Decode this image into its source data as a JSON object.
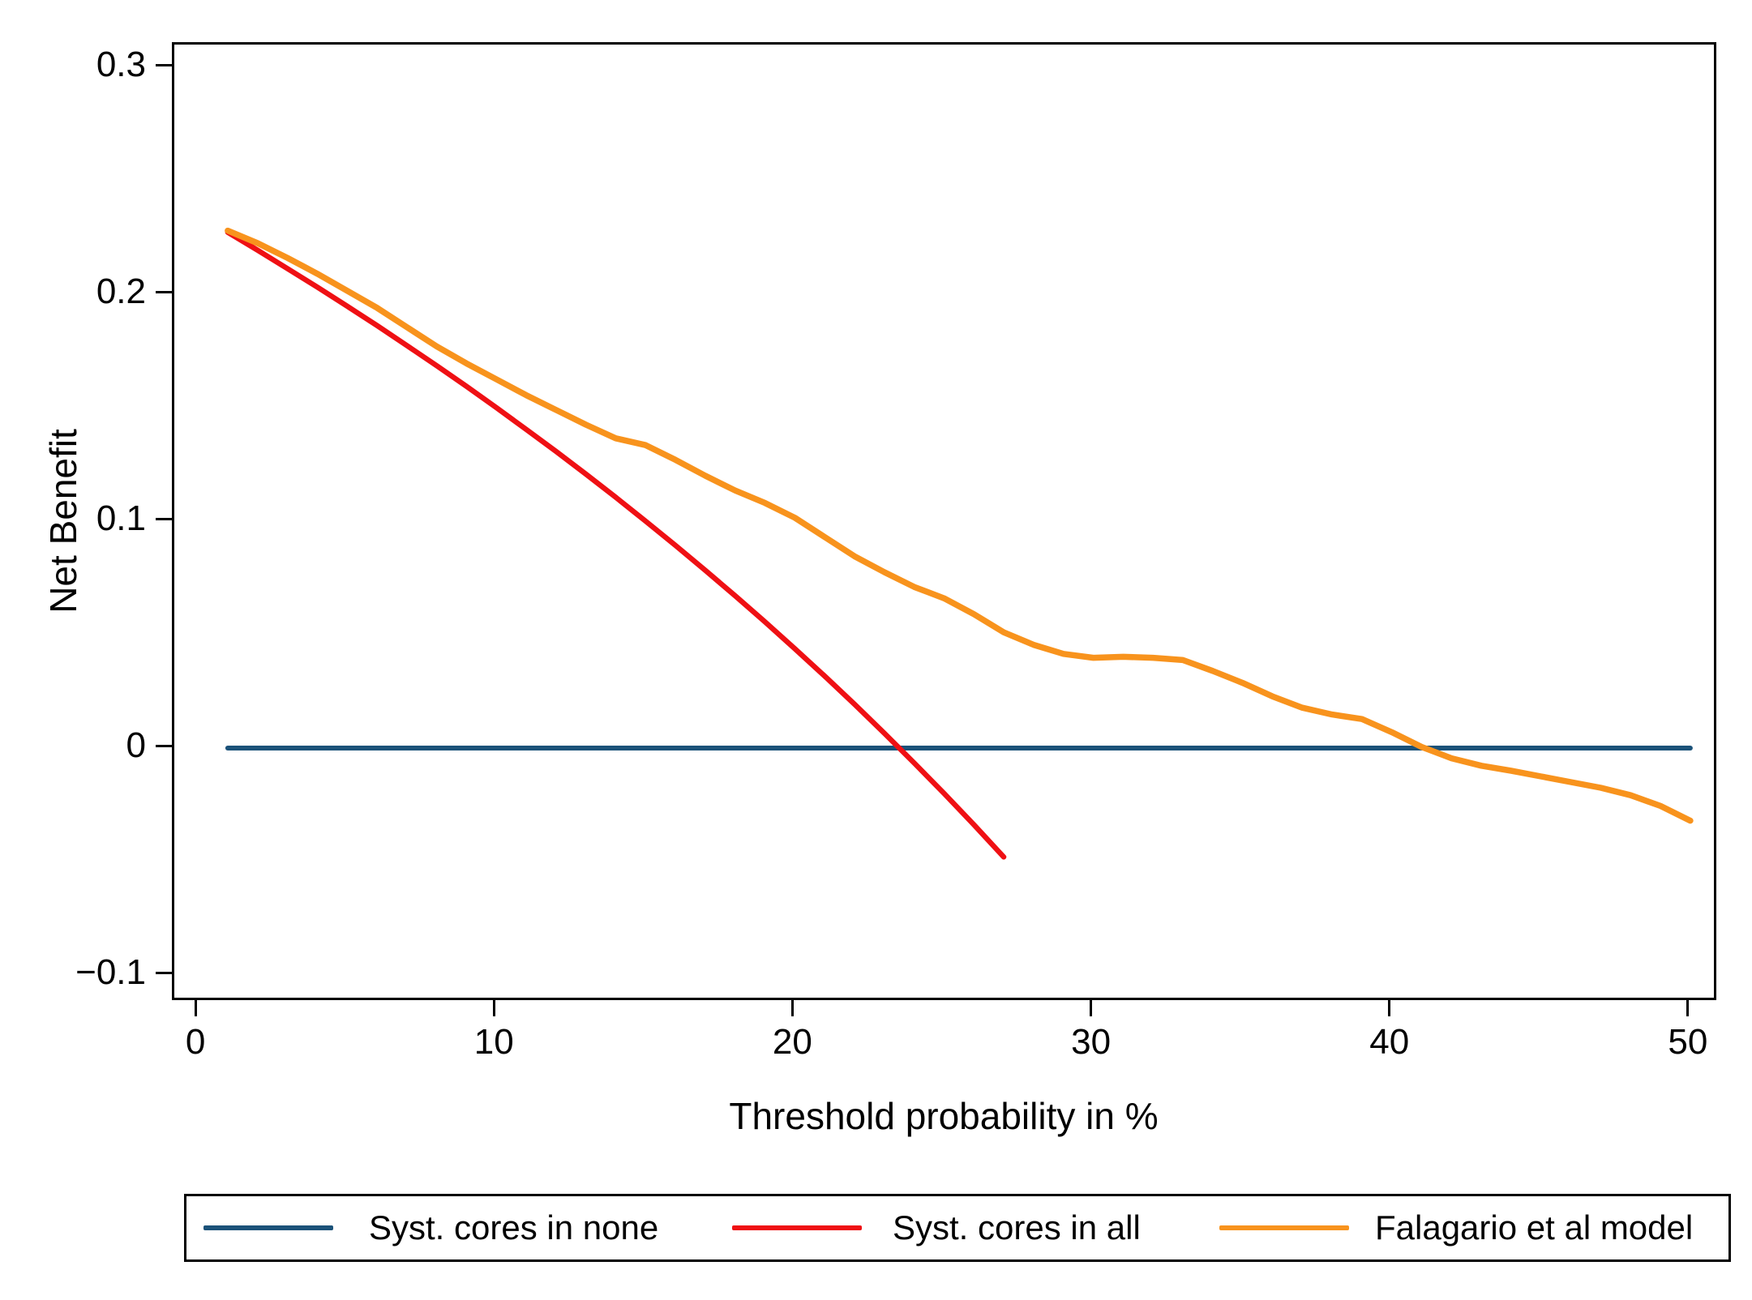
{
  "chart_data": {
    "type": "line",
    "title": "",
    "xlabel": "Threshold probability in %",
    "ylabel": "Net Benefit",
    "x_axis": {
      "range": [
        -0.79,
        50.79
      ],
      "ticks": [
        0,
        10,
        20,
        30,
        40,
        50
      ],
      "tick_labels": [
        "0",
        "10",
        "20",
        "30",
        "40",
        "50"
      ]
    },
    "y_axis": {
      "range": [
        -0.11,
        0.31
      ],
      "ticks": [
        -0.1,
        0,
        0.1,
        0.2,
        0.3
      ],
      "tick_labels": [
        "−0.1",
        "0",
        "0.1",
        "0.2",
        "0.3"
      ]
    },
    "grid": false,
    "legend_position": "bottom",
    "series": [
      {
        "name": "Syst. cores in none",
        "color": "#1b5279",
        "points": [
          [
            1,
            0
          ],
          [
            50,
            0
          ]
        ]
      },
      {
        "name": "Syst. cores in all",
        "color": "#ef1014",
        "points": [
          [
            1,
            0.2273
          ],
          [
            2,
            0.2194
          ],
          [
            3,
            0.2113
          ],
          [
            4,
            0.2031
          ],
          [
            5,
            0.1947
          ],
          [
            6,
            0.1862
          ],
          [
            7,
            0.1774
          ],
          [
            8,
            0.1685
          ],
          [
            9,
            0.1594
          ],
          [
            10,
            0.15
          ],
          [
            11,
            0.1404
          ],
          [
            12,
            0.1307
          ],
          [
            13,
            0.1207
          ],
          [
            14,
            0.1105
          ],
          [
            15,
            0.1
          ],
          [
            16,
            0.0893
          ],
          [
            17,
            0.0783
          ],
          [
            18,
            0.0671
          ],
          [
            19,
            0.0556
          ],
          [
            20,
            0.0438
          ],
          [
            21,
            0.0317
          ],
          [
            22,
            0.0193
          ],
          [
            23,
            0.0065
          ],
          [
            24,
            -0.0066
          ],
          [
            25,
            -0.02
          ],
          [
            26,
            -0.0338
          ],
          [
            27,
            -0.048
          ]
        ]
      },
      {
        "name": "Falagario et al model",
        "color": "#f8931d",
        "points": [
          [
            1,
            0.228
          ],
          [
            2,
            0.2225
          ],
          [
            3,
            0.216
          ],
          [
            4,
            0.209
          ],
          [
            5,
            0.2015
          ],
          [
            6,
            0.194
          ],
          [
            7,
            0.1855
          ],
          [
            8,
            0.177
          ],
          [
            9,
            0.1695
          ],
          [
            10,
            0.1625
          ],
          [
            11,
            0.1555
          ],
          [
            12,
            0.149
          ],
          [
            13,
            0.1425
          ],
          [
            14,
            0.1365
          ],
          [
            15,
            0.1335
          ],
          [
            16,
            0.127
          ],
          [
            17,
            0.12
          ],
          [
            18,
            0.1135
          ],
          [
            19,
            0.108
          ],
          [
            20,
            0.1015
          ],
          [
            21,
            0.093
          ],
          [
            22,
            0.0845
          ],
          [
            23,
            0.0775
          ],
          [
            24,
            0.071
          ],
          [
            25,
            0.066
          ],
          [
            26,
            0.059
          ],
          [
            27,
            0.051
          ],
          [
            28,
            0.0455
          ],
          [
            29,
            0.0415
          ],
          [
            30,
            0.0398
          ],
          [
            31,
            0.0402
          ],
          [
            32,
            0.0398
          ],
          [
            33,
            0.0388
          ],
          [
            34,
            0.034
          ],
          [
            35,
            0.0287
          ],
          [
            36,
            0.0228
          ],
          [
            37,
            0.0178
          ],
          [
            38,
            0.0148
          ],
          [
            39,
            0.0128
          ],
          [
            40,
            0.007
          ],
          [
            41,
            0.0005
          ],
          [
            42,
            -0.0045
          ],
          [
            43,
            -0.0078
          ],
          [
            44,
            -0.01
          ],
          [
            45,
            -0.0125
          ],
          [
            46,
            -0.015
          ],
          [
            47,
            -0.0175
          ],
          [
            48,
            -0.0208
          ],
          [
            49,
            -0.0255
          ],
          [
            50,
            -0.032
          ]
        ]
      }
    ]
  },
  "legend": {
    "items": [
      {
        "label": "Syst. cores in none",
        "color": "#1b5279"
      },
      {
        "label": "Syst. cores in all",
        "color": "#ef1014"
      },
      {
        "label": "Falagario et al model",
        "color": "#f8931d"
      }
    ]
  }
}
